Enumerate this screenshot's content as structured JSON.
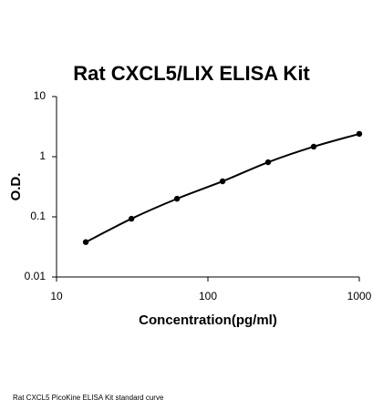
{
  "chart_data": {
    "type": "scatter",
    "title": "Rat CXCL5/LIX ELISA Kit",
    "x_label": "Concentration(pg/ml)",
    "y_label": "O.D.",
    "footnote": "Rat CXCL5 PicoKine ELISA Kit standard curve",
    "x": [
      15.6,
      31.25,
      62.5,
      125,
      250,
      500,
      1000
    ],
    "values": [
      0.038,
      0.093,
      0.2,
      0.39,
      0.81,
      1.47,
      2.4
    ],
    "color": "#000000",
    "fit_line": true,
    "x_log": true,
    "y_log": true,
    "xlim": [
      10,
      1000
    ],
    "ylim": [
      0.01,
      10
    ],
    "xticks": [
      10,
      100,
      1000
    ],
    "yticks": [
      0.01,
      0.1,
      1,
      10
    ]
  }
}
